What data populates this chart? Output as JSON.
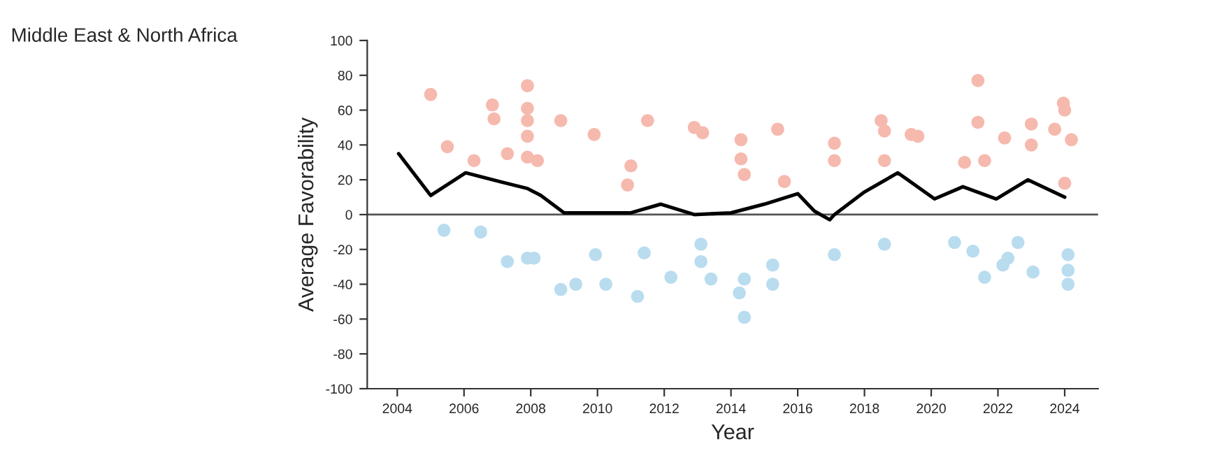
{
  "chart_data": {
    "type": "scatter",
    "title": "Middle East & North Africa",
    "xlabel": "Year",
    "ylabel": "Average Favorability",
    "xlim": [
      2003.1,
      2025
    ],
    "xticks": [
      2004,
      2006,
      2008,
      2010,
      2012,
      2014,
      2016,
      2018,
      2020,
      2022,
      2024
    ],
    "ylim": [
      -100,
      100
    ],
    "yticks": [
      -100,
      -80,
      -60,
      -40,
      -20,
      0,
      20,
      40,
      60,
      80,
      100
    ],
    "grid": false,
    "ref_lines": [
      {
        "axis": "y",
        "value": 0,
        "color": "#555555"
      }
    ],
    "series": [
      {
        "color": "#f6b9ae",
        "marker": "circle",
        "x": [
          2005.0,
          2005.5,
          2006.85,
          2006.9,
          2006.3,
          2007.3,
          2007.9,
          2007.9,
          2007.9,
          2007.9,
          2007.9,
          2008.2,
          2008.9,
          2009.9,
          2010.9,
          2011.5,
          2011.0,
          2012.9,
          2013.15,
          2014.3,
          2014.3,
          2014.4,
          2015.4,
          2015.6,
          2017.1,
          2017.1,
          2018.5,
          2018.6,
          2018.6,
          2019.4,
          2019.6,
          2021.0,
          2021.4,
          2021.4,
          2021.6,
          2022.2,
          2023.0,
          2023.0,
          2023.7,
          2023.96,
          2024.0,
          2024.2,
          2024.0
        ],
        "values": [
          69,
          39,
          63,
          55,
          31,
          35,
          74,
          61,
          54,
          45,
          33,
          31,
          54,
          46,
          17,
          54,
          28,
          50,
          47,
          43,
          32,
          23,
          49,
          19,
          41,
          31,
          54,
          48,
          31,
          46,
          45,
          30,
          77,
          53,
          31,
          44,
          52,
          40,
          49,
          64,
          60,
          43,
          18
        ]
      },
      {
        "color": "#b9dcef",
        "marker": "circle",
        "x": [
          2005.4,
          2006.5,
          2007.3,
          2007.9,
          2008.1,
          2008.9,
          2009.35,
          2010.25,
          2011.2,
          2012.2,
          2013.1,
          2013.1,
          2013.4,
          2014.25,
          2014.4,
          2014.4,
          2015.25,
          2015.25,
          2009.94,
          2011.4,
          2017.1,
          2018.6,
          2020.7,
          2021.25,
          2021.6,
          2022.15,
          2022.3,
          2022.6,
          2023.05,
          2024.1,
          2024.1,
          2024.1
        ],
        "values": [
          -9,
          -10,
          -27,
          -25,
          -25,
          -43,
          -40,
          -40,
          -47,
          -36,
          -17,
          -27,
          -37,
          -45,
          -37,
          -59,
          -29,
          -40,
          -23,
          -22,
          -23,
          -17,
          -16,
          -21,
          -36,
          -29,
          -25,
          -16,
          -33,
          -23,
          -32,
          -40
        ]
      },
      {
        "type": "line",
        "marker": "none",
        "color": "#000000",
        "x": [
          2004.04,
          2005.0,
          2006.05,
          2007.06,
          2007.9,
          2008.3,
          2009.0,
          2010.0,
          2011.0,
          2011.9,
          2012.9,
          2014.0,
          2015.0,
          2016.0,
          2016.5,
          2016.96,
          2017.1,
          2018.0,
          2019.0,
          2020.1,
          2020.95,
          2021.95,
          2022.9,
          2024.0
        ],
        "values": [
          35,
          11,
          24,
          19,
          15,
          11,
          1,
          1,
          1,
          6,
          0,
          1,
          6,
          12,
          2,
          -3,
          0,
          13,
          24,
          9,
          16,
          9,
          20,
          10
        ]
      }
    ]
  }
}
